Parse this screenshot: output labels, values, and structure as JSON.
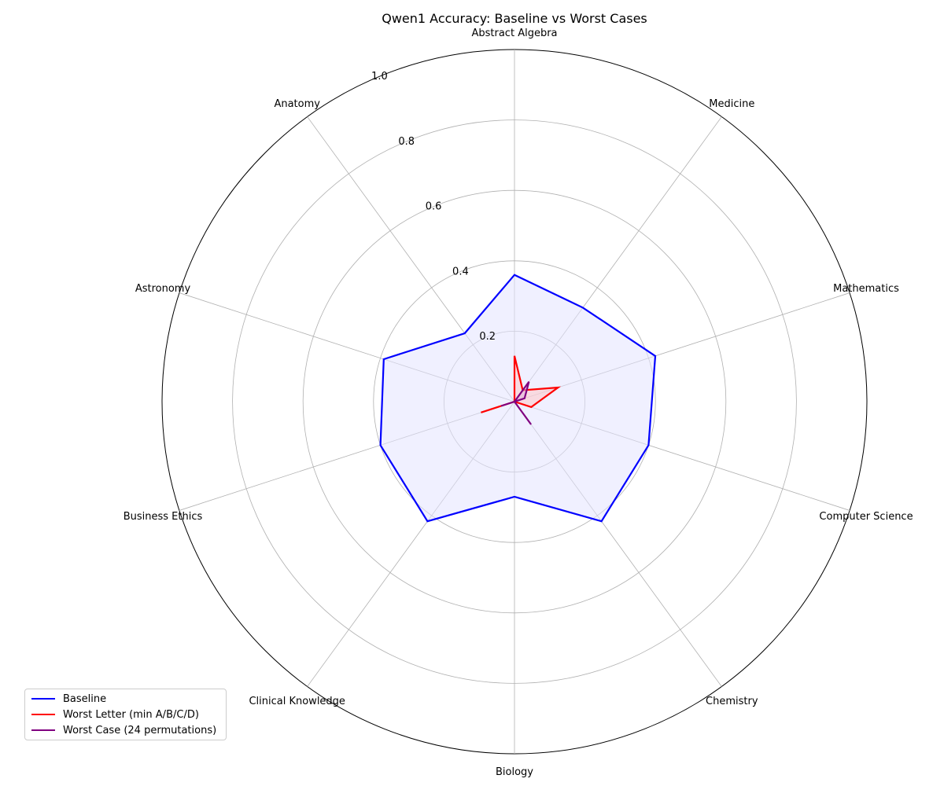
{
  "chart_data": {
    "type": "radar",
    "title": "Qwen1 Accuracy: Baseline vs Worst Cases",
    "categories": [
      "Abstract Algebra",
      "Medicine",
      "Mathematics",
      "Computer Science",
      "Chemistry",
      "Biology",
      "Clinical Knowledge",
      "Business Ethics",
      "Astronomy",
      "Anatomy"
    ],
    "rlim": [
      0,
      1.0
    ],
    "r_ticks": [
      "0.2",
      "0.4",
      "0.6",
      "0.8",
      "1.0"
    ],
    "grid": true,
    "legend_position": "lower-left",
    "series": [
      {
        "name": "Baseline",
        "color": "#0000ff",
        "fill": "#e4e4ff",
        "values": [
          0.36,
          0.33,
          0.42,
          0.4,
          0.42,
          0.27,
          0.42,
          0.4,
          0.39,
          0.24
        ]
      },
      {
        "name": "Worst Letter (min A/B/C/D)",
        "color": "#ff0000",
        "fill": "#ffc8c8",
        "values": [
          0.13,
          0.04,
          0.13,
          0.05,
          0.0,
          0.0,
          0.0,
          0.1,
          0.0,
          0.0
        ]
      },
      {
        "name": "Worst Case (24 permutations)",
        "color": "#800080",
        "fill": "#dcb4dc",
        "values": [
          0.0,
          0.07,
          0.03,
          0.0,
          0.08,
          0.0,
          0.0,
          0.04,
          0.0,
          0.0
        ]
      }
    ]
  }
}
